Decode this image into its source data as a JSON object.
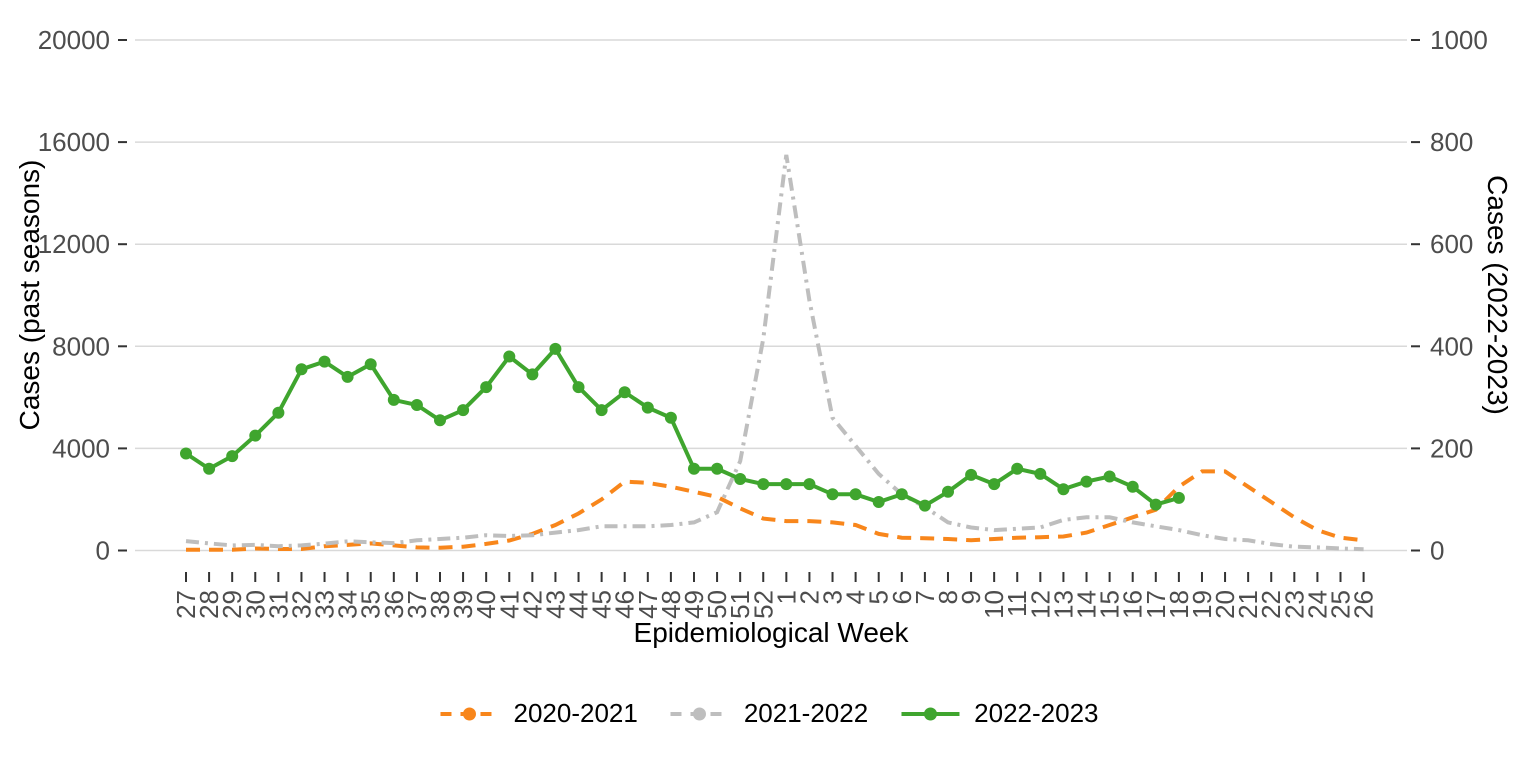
{
  "chart_data": {
    "type": "line",
    "title": "",
    "xlabel": "Epidemiological Week",
    "ylabel_left": "Cases (past seasons)",
    "ylabel_right": "Cases (2022-2023)",
    "grid": true,
    "legend_position": "bottom",
    "x_categories": [
      "27",
      "28",
      "29",
      "30",
      "31",
      "32",
      "33",
      "34",
      "35",
      "36",
      "37",
      "38",
      "39",
      "40",
      "41",
      "42",
      "43",
      "44",
      "45",
      "46",
      "47",
      "48",
      "49",
      "50",
      "51",
      "52",
      "1",
      "2",
      "3",
      "4",
      "5",
      "6",
      "7",
      "8",
      "9",
      "10",
      "11",
      "12",
      "13",
      "14",
      "15",
      "16",
      "17",
      "18",
      "19",
      "20",
      "21",
      "22",
      "23",
      "24",
      "25",
      "26"
    ],
    "left_axis": {
      "min": 0,
      "max": 20000,
      "ticks": [
        "0",
        "4000",
        "8000",
        "12000",
        "16000",
        "20000"
      ]
    },
    "right_axis": {
      "min": 0,
      "max": 1000,
      "ticks": [
        "0",
        "200",
        "400",
        "600",
        "800",
        "1000"
      ]
    },
    "colors": {
      "grid": "#d9d9d9",
      "tick": "#333333",
      "tick_label": "#4d4d4d"
    },
    "series": [
      {
        "name": "2020-2021",
        "axis": "left",
        "color": "#F8861B",
        "style": "dashed",
        "points_visible": false,
        "values": [
          30,
          30,
          30,
          80,
          60,
          60,
          170,
          220,
          280,
          200,
          120,
          110,
          150,
          260,
          390,
          650,
          1000,
          1450,
          2000,
          2700,
          2650,
          2500,
          2300,
          2100,
          1650,
          1250,
          1150,
          1150,
          1100,
          1000,
          650,
          500,
          480,
          450,
          400,
          450,
          500,
          520,
          550,
          700,
          1000,
          1300,
          1600,
          2500,
          3100,
          3100,
          2500,
          1900,
          1300,
          800,
          500,
          400
        ]
      },
      {
        "name": "2021-2022",
        "axis": "left",
        "color": "#BEBEBE",
        "style": "dashdot",
        "points_visible": false,
        "values": [
          370,
          280,
          200,
          220,
          170,
          200,
          270,
          360,
          320,
          290,
          400,
          450,
          500,
          600,
          570,
          600,
          700,
          800,
          950,
          950,
          950,
          1000,
          1100,
          1500,
          3500,
          8300,
          15500,
          9800,
          5200,
          4100,
          3000,
          2200,
          1700,
          1100,
          900,
          800,
          850,
          900,
          1200,
          1300,
          1300,
          1100,
          950,
          800,
          600,
          450,
          400,
          250,
          150,
          120,
          80,
          50
        ]
      },
      {
        "name": "2022-2023",
        "axis": "right",
        "color": "#3FA52E",
        "style": "solid",
        "points_visible": true,
        "values": [
          190,
          160,
          185,
          225,
          270,
          355,
          370,
          340,
          365,
          295,
          285,
          255,
          275,
          320,
          380,
          345,
          395,
          320,
          275,
          310,
          280,
          260,
          160,
          160,
          140,
          130,
          130,
          130,
          110,
          110,
          95,
          110,
          88,
          115,
          148,
          130,
          160,
          150,
          120,
          135,
          145,
          125,
          90,
          103,
          null,
          null,
          null,
          null,
          null,
          null,
          null,
          null
        ]
      }
    ]
  }
}
